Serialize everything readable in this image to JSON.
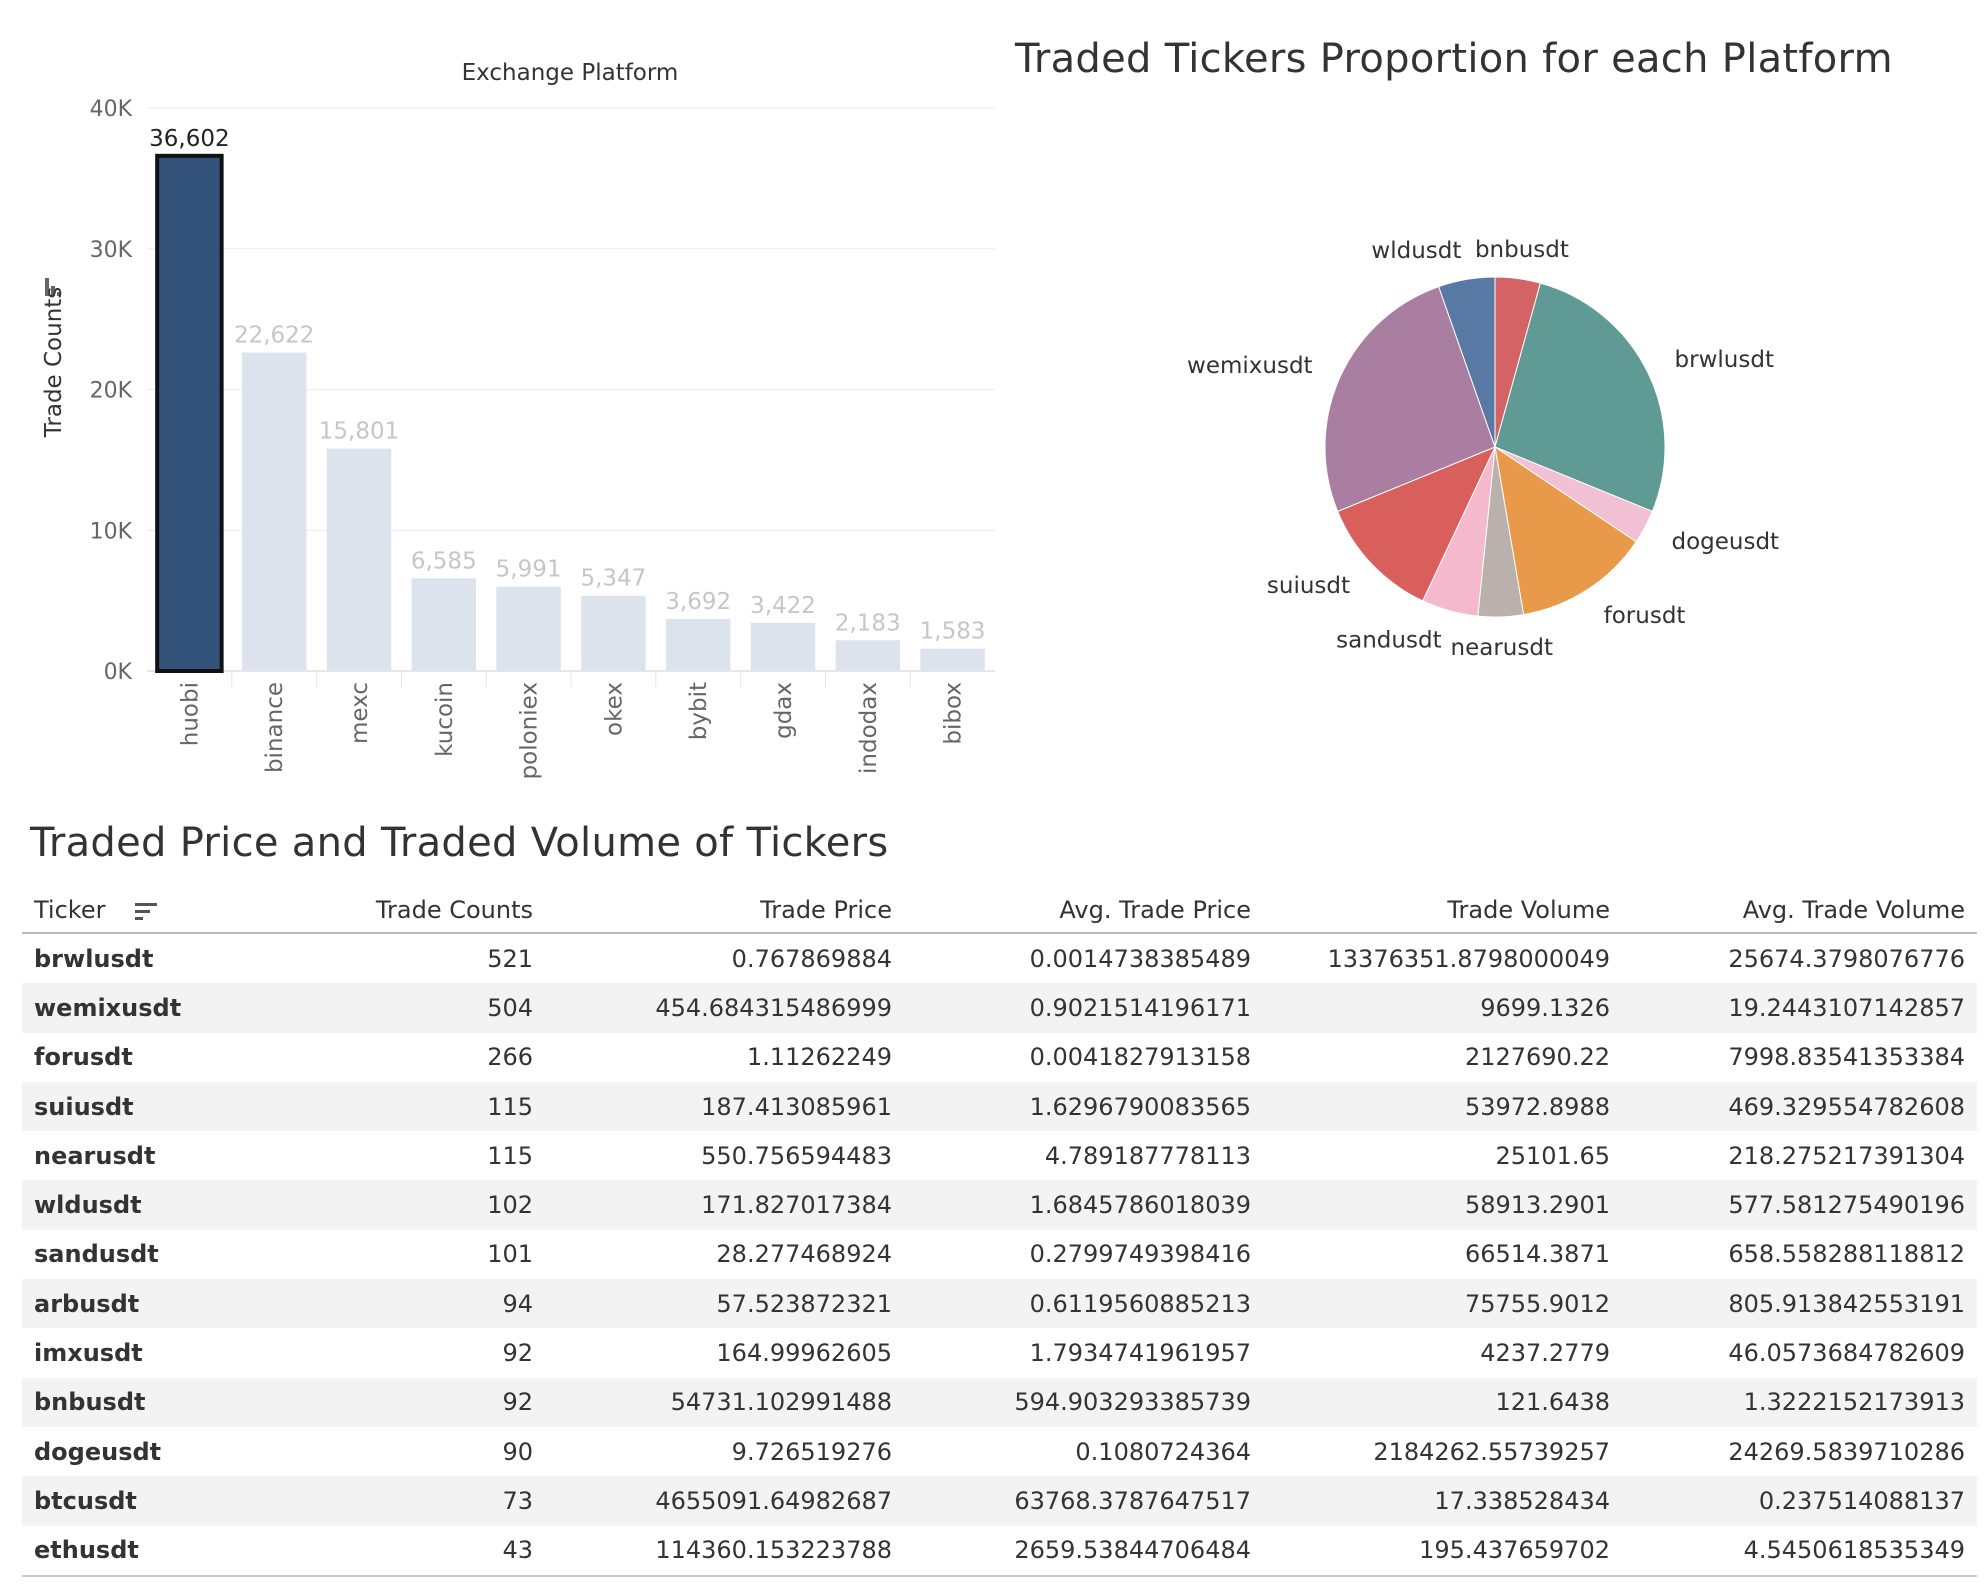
{
  "chart_data": [
    {
      "type": "bar",
      "title": "Exchange Platform",
      "ylabel": "Trade Counts",
      "xlabel": "",
      "categories": [
        "huobi",
        "binance",
        "mexc",
        "kucoin",
        "poloniex",
        "okex",
        "bybit",
        "gdax",
        "indodax",
        "bibox"
      ],
      "values": [
        36602,
        22622,
        15801,
        6585,
        5991,
        5347,
        3692,
        3422,
        2183,
        1583
      ],
      "value_labels": [
        "36,602",
        "22,622",
        "15,801",
        "6,585",
        "5,991",
        "5,347",
        "3,692",
        "3,422",
        "2,183",
        "1,583"
      ],
      "highlighted": "huobi",
      "ylim": [
        0,
        40000
      ],
      "yticks": [
        0,
        10000,
        20000,
        30000,
        40000
      ],
      "ytick_labels": [
        "0K",
        "10K",
        "20K",
        "30K",
        "40K"
      ],
      "grid": true,
      "colors": {
        "highlight": "#34537a",
        "dim": "#dde3ec",
        "highlight_border": "#111111",
        "dim_label": "#c6c6c6",
        "highlight_label": "#222222"
      }
    },
    {
      "type": "pie",
      "title": "Traded Tickers Proportion for each Platform",
      "categories": [
        "bnbusdt",
        "brwlusdt",
        "dogeusdt",
        "forusdt",
        "nearusdt",
        "sandusdt",
        "suiusdt",
        "wemixusdt",
        "wldusdt"
      ],
      "values": [
        4,
        25,
        3,
        12,
        4,
        5,
        11,
        24,
        5
      ],
      "colors": [
        "#d46366",
        "#5f9a94",
        "#f2c0d3",
        "#e8994a",
        "#bbb1ac",
        "#f4b9cc",
        "#d95f5c",
        "#aa7ea0",
        "#5779a4",
        "#d45c5a",
        "#9ccf85",
        "#b9afa8"
      ]
    }
  ],
  "table": {
    "title": "Traded Price and Traded Volume of Tickers",
    "columns": [
      "Ticker",
      "Trade Counts",
      "Trade Price",
      "Avg. Trade Price",
      "Trade Volume",
      "Avg. Trade Volume"
    ],
    "rows": [
      [
        "brwlusdt",
        "521",
        "0.767869884",
        "0.0014738385489",
        "13376351.8798000049",
        "25674.3798076776"
      ],
      [
        "wemixusdt",
        "504",
        "454.684315486999",
        "0.9021514196171",
        "9699.1326",
        "19.2443107142857"
      ],
      [
        "forusdt",
        "266",
        "1.11262249",
        "0.0041827913158",
        "2127690.22",
        "7998.83541353384"
      ],
      [
        "suiusdt",
        "115",
        "187.413085961",
        "1.6296790083565",
        "53972.8988",
        "469.329554782608"
      ],
      [
        "nearusdt",
        "115",
        "550.756594483",
        "4.789187778113",
        "25101.65",
        "218.275217391304"
      ],
      [
        "wldusdt",
        "102",
        "171.827017384",
        "1.6845786018039",
        "58913.2901",
        "577.581275490196"
      ],
      [
        "sandusdt",
        "101",
        "28.277468924",
        "0.2799749398416",
        "66514.3871",
        "658.558288118812"
      ],
      [
        "arbusdt",
        "94",
        "57.523872321",
        "0.6119560885213",
        "75755.9012",
        "805.913842553191"
      ],
      [
        "imxusdt",
        "92",
        "164.99962605",
        "1.7934741961957",
        "4237.2779",
        "46.0573684782609"
      ],
      [
        "bnbusdt",
        "92",
        "54731.102991488",
        "594.903293385739",
        "121.6438",
        "1.3222152173913"
      ],
      [
        "dogeusdt",
        "90",
        "9.726519276",
        "0.1080724364",
        "2184262.55739257",
        "24269.5839710286"
      ],
      [
        "btcusdt",
        "73",
        "4655091.64982687",
        "63768.3787647517",
        "17.338528434",
        "0.237514088137"
      ],
      [
        "ethusdt",
        "43",
        "114360.153223788",
        "2659.53844706484",
        "195.437659702",
        "4.5450618535349"
      ]
    ]
  }
}
